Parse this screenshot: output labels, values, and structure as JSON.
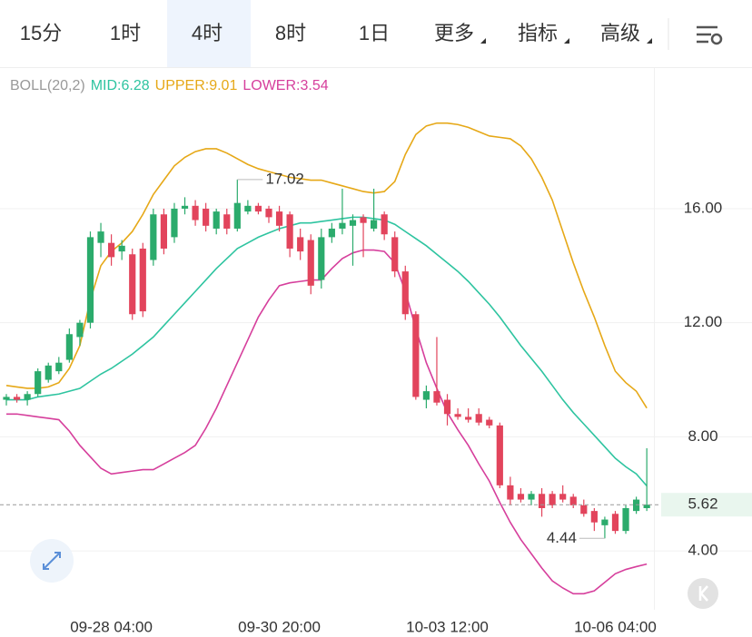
{
  "tabs": [
    "15分",
    "1时",
    "4时",
    "8时",
    "1日",
    "更多",
    "指标",
    "高级"
  ],
  "active_tab": 2,
  "dropdown_tabs": [
    5,
    6,
    7
  ],
  "chart_data": {
    "type": "candlestick",
    "indicator": "BOLL(20,2)",
    "bands": [
      {
        "label": "MID:6.28",
        "color": "#2ec4a0",
        "values": [
          9.3,
          9.3,
          9.3,
          9.4,
          9.45,
          9.5,
          9.6,
          9.7,
          9.95,
          10.2,
          10.4,
          10.65,
          10.9,
          11.2,
          11.5,
          11.9,
          12.3,
          12.7,
          13.1,
          13.5,
          13.9,
          14.25,
          14.6,
          14.8,
          15.0,
          15.15,
          15.3,
          15.4,
          15.5,
          15.5,
          15.55,
          15.6,
          15.65,
          15.7,
          15.7,
          15.65,
          15.6,
          15.45,
          15.2,
          14.95,
          14.7,
          14.4,
          14.1,
          13.8,
          13.45,
          13.05,
          12.65,
          12.2,
          11.7,
          11.2,
          10.75,
          10.3,
          9.8,
          9.3,
          8.85,
          8.45,
          8.05,
          7.65,
          7.25,
          6.95,
          6.7,
          6.28
        ]
      },
      {
        "label": "UPPER:9.01",
        "color": "#e6a817",
        "values": [
          9.8,
          9.75,
          9.7,
          9.7,
          9.75,
          9.9,
          10.4,
          11.2,
          12.8,
          14.0,
          14.5,
          14.8,
          15.2,
          15.8,
          16.5,
          17.0,
          17.5,
          17.8,
          18.0,
          18.1,
          18.1,
          17.95,
          17.75,
          17.55,
          17.4,
          17.3,
          17.2,
          17.1,
          17.05,
          17.0,
          17.0,
          16.9,
          16.8,
          16.7,
          16.6,
          16.55,
          16.6,
          16.95,
          17.9,
          18.6,
          18.9,
          19.0,
          19.0,
          18.95,
          18.85,
          18.7,
          18.55,
          18.5,
          18.45,
          18.2,
          17.75,
          17.1,
          16.3,
          15.2,
          14.1,
          13.1,
          12.2,
          11.2,
          10.3,
          9.9,
          9.6,
          9.01
        ]
      },
      {
        "label": "LOWER:3.54",
        "color": "#d63f9c",
        "values": [
          8.8,
          8.8,
          8.75,
          8.7,
          8.65,
          8.6,
          8.2,
          7.7,
          7.3,
          6.9,
          6.7,
          6.75,
          6.8,
          6.85,
          6.85,
          7.05,
          7.25,
          7.45,
          7.7,
          8.3,
          9.0,
          9.8,
          10.6,
          11.4,
          12.2,
          12.8,
          13.3,
          13.4,
          13.45,
          13.5,
          13.5,
          13.9,
          14.25,
          14.45,
          14.55,
          14.55,
          14.5,
          14.1,
          13.1,
          11.8,
          10.6,
          9.7,
          8.85,
          8.25,
          7.7,
          7.05,
          6.45,
          5.7,
          5.0,
          4.4,
          3.9,
          3.4,
          2.95,
          2.7,
          2.5,
          2.5,
          2.6,
          2.9,
          3.2,
          3.35,
          3.45,
          3.54
        ]
      }
    ],
    "categories": [
      null,
      null,
      null,
      null,
      null,
      null,
      null,
      null,
      null,
      null,
      "09-28 04:00",
      null,
      null,
      null,
      null,
      null,
      null,
      null,
      null,
      null,
      null,
      null,
      null,
      null,
      null,
      null,
      "09-30 20:00",
      null,
      null,
      null,
      null,
      null,
      null,
      null,
      null,
      null,
      null,
      null,
      null,
      null,
      null,
      null,
      "10-03 12:00",
      null,
      null,
      null,
      null,
      null,
      null,
      null,
      null,
      null,
      null,
      null,
      null,
      null,
      null,
      null,
      "10-06 04:00",
      null,
      null,
      null
    ],
    "open": [
      9.3,
      9.4,
      9.3,
      9.5,
      10.0,
      10.3,
      10.7,
      11.5,
      12.0,
      14.8,
      14.8,
      14.5,
      14.4,
      14.6,
      14.2,
      15.8,
      15.0,
      16.0,
      16.1,
      16.0,
      15.3,
      15.8,
      15.3,
      15.9,
      16.1,
      16.0,
      15.9,
      15.8,
      15.0,
      14.9,
      13.5,
      15.0,
      15.3,
      15.4,
      15.7,
      15.3,
      15.8,
      15.0,
      13.8,
      12.3,
      9.3,
      9.6,
      9.3,
      8.8,
      8.7,
      8.8,
      8.6,
      8.4,
      6.3,
      6.0,
      5.8,
      6.0,
      6.0,
      6.0,
      5.9,
      5.6,
      5.4,
      4.9,
      5.3,
      4.7,
      5.4,
      5.5
    ],
    "high": [
      9.5,
      9.5,
      9.6,
      10.4,
      10.6,
      10.8,
      11.8,
      12.1,
      15.2,
      15.5,
      15.1,
      14.9,
      14.6,
      14.8,
      16.0,
      16.0,
      16.2,
      16.4,
      16.3,
      16.2,
      16.0,
      16.0,
      17.02,
      16.3,
      16.2,
      16.1,
      16.1,
      15.9,
      15.3,
      15.1,
      15.3,
      15.5,
      16.7,
      15.8,
      15.8,
      16.7,
      15.9,
      15.2,
      14.0,
      12.4,
      9.8,
      11.5,
      9.5,
      9.0,
      9.0,
      9.0,
      8.7,
      8.5,
      6.6,
      6.2,
      6.1,
      6.2,
      6.1,
      6.3,
      6.0,
      5.8,
      5.5,
      5.2,
      5.4,
      5.6,
      5.9,
      7.6
    ],
    "low": [
      9.1,
      9.2,
      9.1,
      9.4,
      9.9,
      10.2,
      10.6,
      11.2,
      11.8,
      14.3,
      14.0,
      14.2,
      12.1,
      12.2,
      14.0,
      14.4,
      14.8,
      15.8,
      15.4,
      15.2,
      15.1,
      15.1,
      15.2,
      15.8,
      15.8,
      15.5,
      15.2,
      14.3,
      14.2,
      13.0,
      13.2,
      14.8,
      15.1,
      14.0,
      14.3,
      15.2,
      14.9,
      13.6,
      12.1,
      9.3,
      9.0,
      9.1,
      8.4,
      8.6,
      8.5,
      8.4,
      8.3,
      6.2,
      5.6,
      5.7,
      5.6,
      5.2,
      5.5,
      5.7,
      5.5,
      5.2,
      4.7,
      4.44,
      4.6,
      4.6,
      5.3,
      5.4
    ],
    "close": [
      9.4,
      9.3,
      9.5,
      10.3,
      10.5,
      10.6,
      11.6,
      12.0,
      15.0,
      15.2,
      14.3,
      14.7,
      12.3,
      12.4,
      15.8,
      14.6,
      16.0,
      16.1,
      15.6,
      15.4,
      15.9,
      15.3,
      16.2,
      16.1,
      15.9,
      15.7,
      15.4,
      14.6,
      14.5,
      13.3,
      15.0,
      15.3,
      15.5,
      15.6,
      15.5,
      15.6,
      15.1,
      13.8,
      12.3,
      9.4,
      9.6,
      9.2,
      8.8,
      8.7,
      8.6,
      8.5,
      8.4,
      6.3,
      5.8,
      5.8,
      6.0,
      5.5,
      5.6,
      5.8,
      5.6,
      5.3,
      5.0,
      5.1,
      4.7,
      5.5,
      5.8,
      5.62
    ],
    "up_color": "#2bab6c",
    "down_color": "#e2445c",
    "ylim": [
      2,
      20.93
    ],
    "yticks": [
      {
        "value": 4,
        "label": "4.00"
      },
      {
        "value": 8,
        "label": "8.00"
      },
      {
        "value": 12,
        "label": "12.00"
      },
      {
        "value": 16,
        "label": "16.00"
      }
    ],
    "grid": true
  }
}
